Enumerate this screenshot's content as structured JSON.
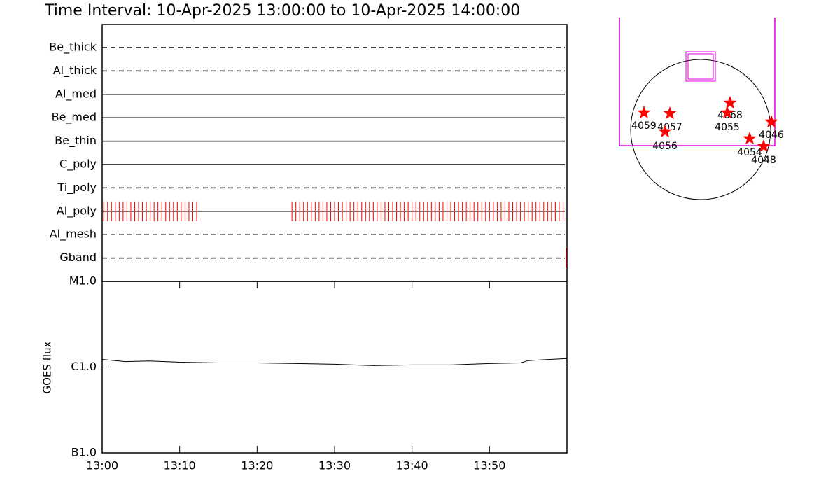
{
  "chart_data": [
    {
      "type": "timeline",
      "title": "Time Interval: 10-Apr-2025 13:00:00 to 10-Apr-2025 14:00:00",
      "categories": [
        "Be_thick",
        "Al_thick",
        "Al_med",
        "Be_med",
        "Be_thin",
        "C_poly",
        "Ti_poly",
        "Al_poly",
        "Al_mesh",
        "Gband"
      ],
      "line_styles": [
        "dashed",
        "dashed",
        "solid",
        "solid",
        "solid",
        "solid",
        "dashed",
        "solid",
        "dashed",
        "dashed"
      ],
      "color": "#ff0000",
      "xlim": [
        0,
        60
      ],
      "observations": [
        [],
        [],
        [],
        [],
        [],
        [],
        [],
        [
          0.2,
          0.7,
          1.2,
          1.7,
          2.2,
          2.7,
          3.2,
          3.7,
          4.2,
          4.7,
          5.2,
          5.7,
          6.2,
          6.7,
          7.2,
          7.7,
          8.2,
          8.7,
          9.2,
          9.7,
          10.2,
          10.7,
          11.2,
          11.7,
          12.2,
          24.5,
          25,
          25.5,
          26,
          26.5,
          27,
          27.5,
          28,
          28.5,
          29,
          29.5,
          30,
          30.5,
          31,
          31.5,
          32,
          32.5,
          33,
          33.5,
          34,
          34.5,
          35,
          35.5,
          36,
          36.5,
          37,
          37.5,
          38,
          38.5,
          39,
          39.5,
          40,
          40.5,
          41,
          41.5,
          42,
          42.5,
          43,
          43.5,
          44,
          44.5,
          45,
          45.5,
          46,
          46.5,
          47,
          47.5,
          48,
          48.5,
          49,
          49.5,
          50,
          50.5,
          51,
          51.5,
          52,
          52.5,
          53,
          53.5,
          54,
          54.5,
          55,
          55.5,
          56,
          56.5,
          57,
          57.5,
          58,
          58.5,
          59,
          59.5
        ],
        [],
        [
          59.9
        ]
      ]
    },
    {
      "type": "line",
      "y_label": "GOES flux",
      "color": "#000000",
      "log_y": true,
      "x": [
        0,
        3,
        6,
        10,
        15,
        20,
        25,
        30,
        35,
        40,
        45,
        50,
        54,
        55,
        60
      ],
      "values": [
        1.23e-06,
        1.16e-06,
        1.18e-06,
        1.14e-06,
        1.12e-06,
        1.12e-06,
        1.1e-06,
        1.08e-06,
        1.04e-06,
        1.06e-06,
        1.06e-06,
        1.1e-06,
        1.12e-06,
        1.19e-06,
        1.26e-06
      ],
      "xlim": [
        0,
        60
      ],
      "xticks": [
        {
          "value": 0,
          "label": "13:00"
        },
        {
          "value": 10,
          "label": "13:10"
        },
        {
          "value": 20,
          "label": "13:20"
        },
        {
          "value": 30,
          "label": "13:30"
        },
        {
          "value": 40,
          "label": "13:40"
        },
        {
          "value": 50,
          "label": "13:50"
        }
      ],
      "ylim": [
        1e-07,
        1e-05
      ],
      "yticks": [
        {
          "value": 1e-07,
          "label": "B1.0"
        },
        {
          "value": 1e-06,
          "label": "C1.0"
        },
        {
          "value": 1e-05,
          "label": "M1.0"
        }
      ]
    },
    {
      "type": "map",
      "color": "#ff0000",
      "labels": [
        "4059",
        "4057",
        "4056",
        "4068",
        "4055",
        "4046",
        "4054",
        "4048"
      ]
    }
  ]
}
